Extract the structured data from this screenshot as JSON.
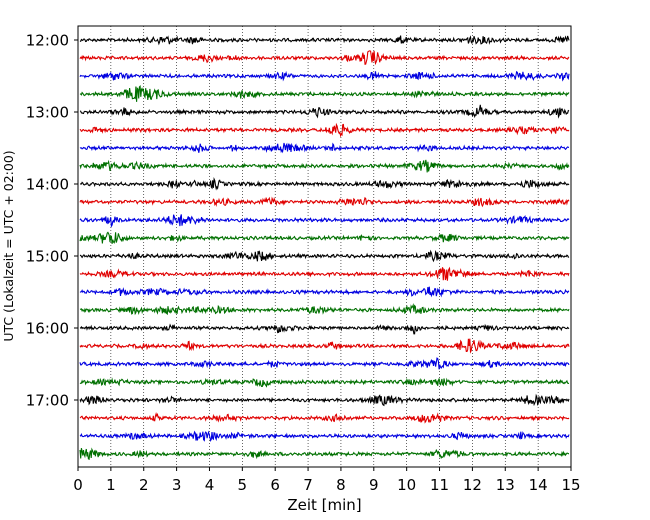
{
  "chart_data": {
    "type": "line",
    "title": "",
    "xlabel": "Zeit  [min]",
    "ylabel": "UTC (Lokalzeit = UTC + 02:00)",
    "xlim": [
      0,
      15
    ],
    "x_ticks": [
      "0",
      "1",
      "2",
      "3",
      "4",
      "5",
      "6",
      "7",
      "8",
      "9",
      "10",
      "11",
      "12",
      "13",
      "14",
      "15"
    ],
    "y_ticks": [
      {
        "label": "12:00",
        "row": 0
      },
      {
        "label": "13:00",
        "row": 4
      },
      {
        "label": "14:00",
        "row": 8
      },
      {
        "label": "15:00",
        "row": 12
      },
      {
        "label": "16:00",
        "row": 16
      },
      {
        "label": "17:00",
        "row": 20
      }
    ],
    "grid": "vertical dotted at each minute",
    "rows_per_hour": 4,
    "row_interval_minutes": 15,
    "row_count": 24,
    "row_colors": [
      "#000000",
      "#e00000",
      "#0000e0",
      "#007000"
    ],
    "series": [
      {
        "start": "12:00"
      },
      {
        "start": "12:15"
      },
      {
        "start": "12:30"
      },
      {
        "start": "12:45"
      },
      {
        "start": "13:00"
      },
      {
        "start": "13:15"
      },
      {
        "start": "13:30"
      },
      {
        "start": "13:45"
      },
      {
        "start": "14:00"
      },
      {
        "start": "14:15"
      },
      {
        "start": "14:30"
      },
      {
        "start": "14:45"
      },
      {
        "start": "15:00"
      },
      {
        "start": "15:15"
      },
      {
        "start": "15:30"
      },
      {
        "start": "15:45"
      },
      {
        "start": "16:00"
      },
      {
        "start": "16:15"
      },
      {
        "start": "16:30"
      },
      {
        "start": "16:45"
      },
      {
        "start": "17:00"
      },
      {
        "start": "17:15"
      },
      {
        "start": "17:30"
      },
      {
        "start": "17:45"
      }
    ]
  }
}
